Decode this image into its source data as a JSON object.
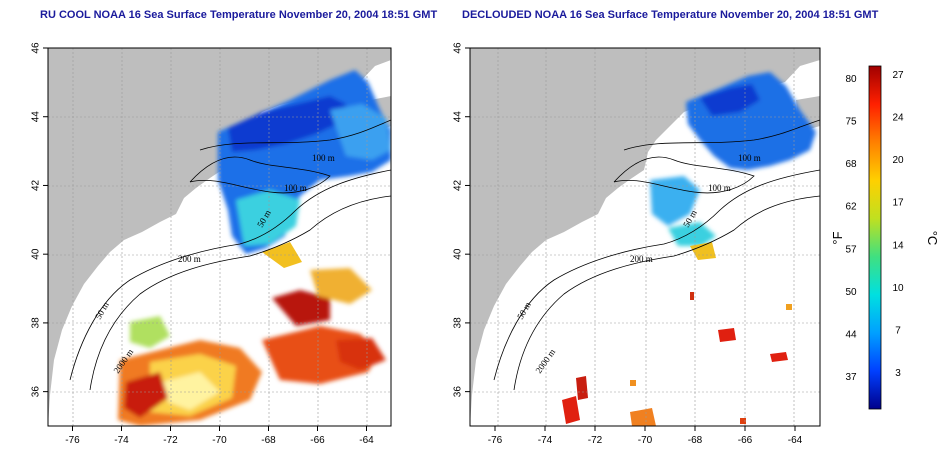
{
  "titles": {
    "left": "RU COOL NOAA 16 Sea Surface Temperature November 20, 2004 18:51 GMT",
    "right": "DECLOUDED NOAA 16 Sea Surface Temperature November 20, 2004 18:51 GMT"
  },
  "chart_data": [
    {
      "type": "heatmap",
      "title": "RU COOL NOAA 16 Sea Surface Temperature November 20, 2004 18:51 GMT",
      "xlim": [
        -77,
        -63
      ],
      "ylim": [
        35,
        46
      ],
      "x_ticks": [
        "-76",
        "-74",
        "-72",
        "-70",
        "-68",
        "-66",
        "-64"
      ],
      "y_ticks": [
        "36",
        "38",
        "40",
        "42",
        "44",
        "46"
      ],
      "contour_labels": [
        "100 m",
        "100 m",
        "50 m",
        "200 m",
        "50 m",
        "2000 m"
      ],
      "grid": true
    },
    {
      "type": "heatmap",
      "title": "DECLOUDED NOAA 16 Sea Surface Temperature November 20, 2004 18:51 GMT",
      "xlim": [
        -77,
        -63
      ],
      "ylim": [
        35,
        46
      ],
      "x_ticks": [
        "-76",
        "-74",
        "-72",
        "-70",
        "-68",
        "-66",
        "-64"
      ],
      "y_ticks": [
        "36",
        "38",
        "40",
        "42",
        "44",
        "46"
      ],
      "contour_labels": [
        "100 m",
        "100 m",
        "50 m",
        "200 m",
        "50 m",
        "2000 m"
      ],
      "grid": true
    }
  ],
  "colorbar": {
    "f_unit": "°F",
    "c_unit": "°C",
    "f_ticks": [
      "80",
      "75",
      "68",
      "62",
      "57",
      "50",
      "44",
      "37"
    ],
    "c_ticks": [
      "27",
      "24",
      "20",
      "17",
      "14",
      "10",
      "7",
      "3"
    ],
    "colors": [
      "#00008b",
      "#0040ff",
      "#00a0ff",
      "#00e0e0",
      "#40e080",
      "#c0e020",
      "#ffd000",
      "#ff8000",
      "#ff2000",
      "#a00000"
    ]
  }
}
